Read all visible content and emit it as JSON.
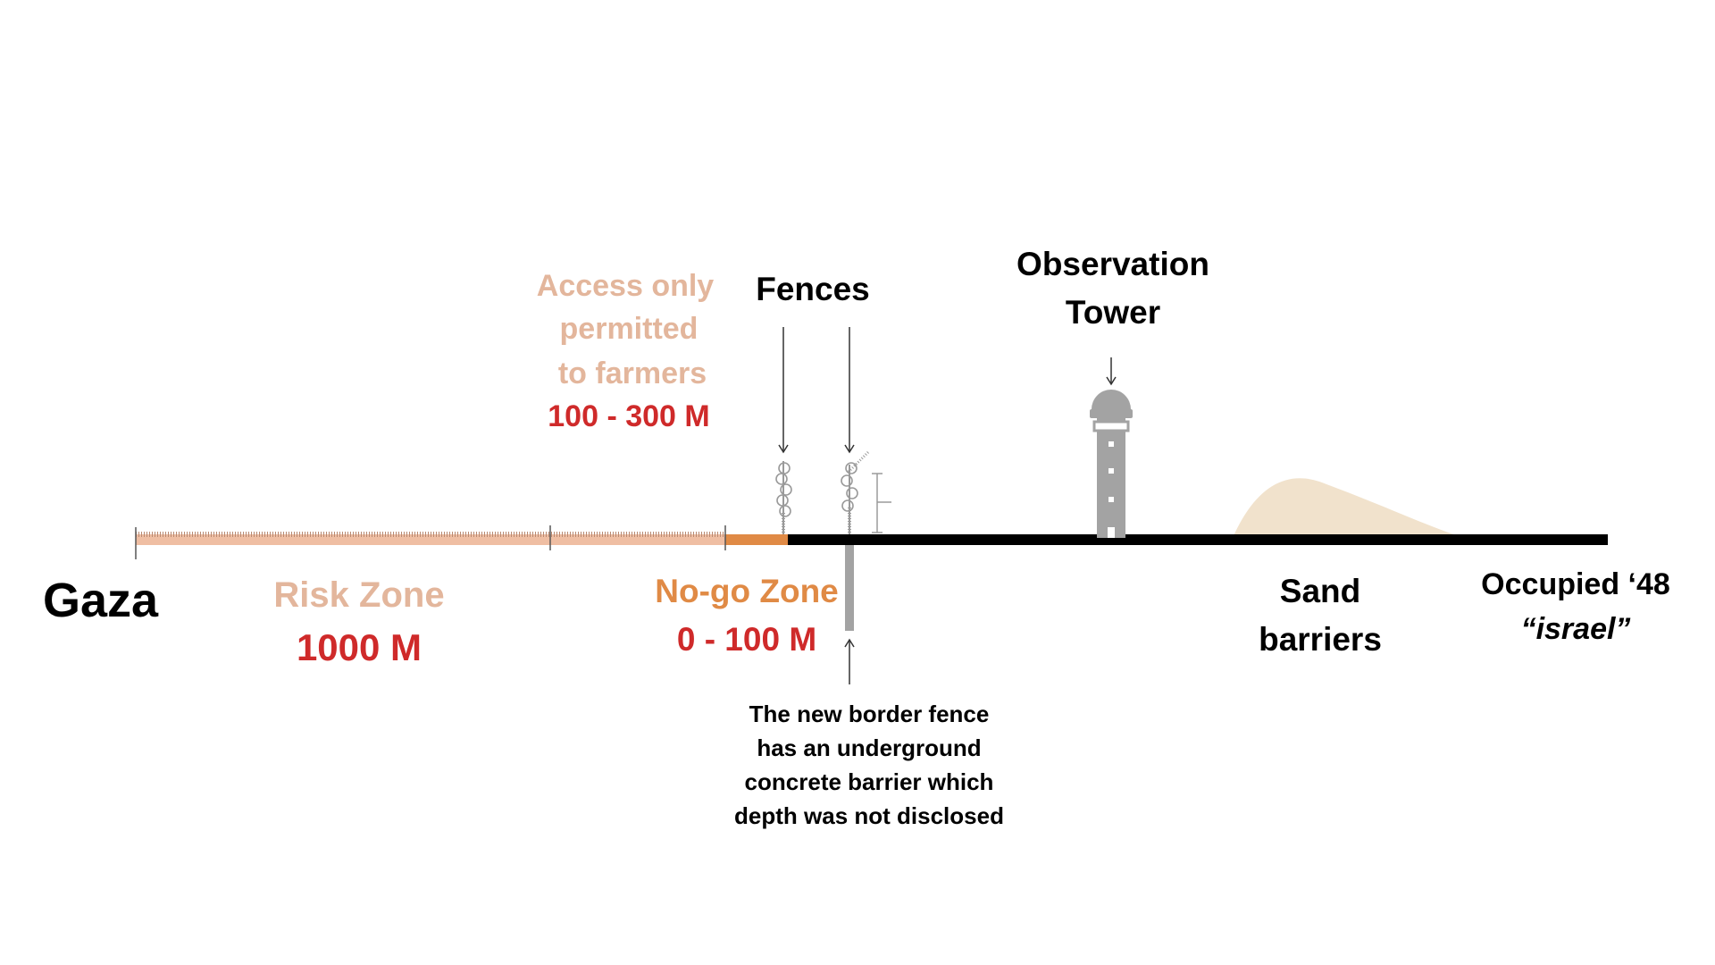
{
  "labels": {
    "gaza": "Gaza",
    "risk_zone": "Risk Zone",
    "risk_zone_distance": "1000 M",
    "access_line1": "Access only",
    "access_line2": "permitted",
    "access_line3": "to farmers",
    "access_distance": "100 - 300 M",
    "fences": "Fences",
    "observation_line1": "Observation",
    "observation_line2": "Tower",
    "no_go_zone": "No-go Zone",
    "no_go_distance": "0 - 100 M",
    "border_note_line1": "The new border fence",
    "border_note_line2": "has an underground",
    "border_note_line3": "concrete barrier which",
    "border_note_line4": "depth was not disclosed",
    "sand_line1": "Sand",
    "sand_line2": "barriers",
    "occupied_line1": "Occupied ‘48",
    "occupied_line2": "“israel”"
  },
  "colors": {
    "risk_zone": "#e3b69c",
    "risk_bar": "#efbea3",
    "no_go": "#e08a45",
    "distance_red": "#cf2a2a",
    "ground": "#000000",
    "structure_gray": "#a3a3a3",
    "sand": "#f1e2cc",
    "text": "#000000"
  }
}
